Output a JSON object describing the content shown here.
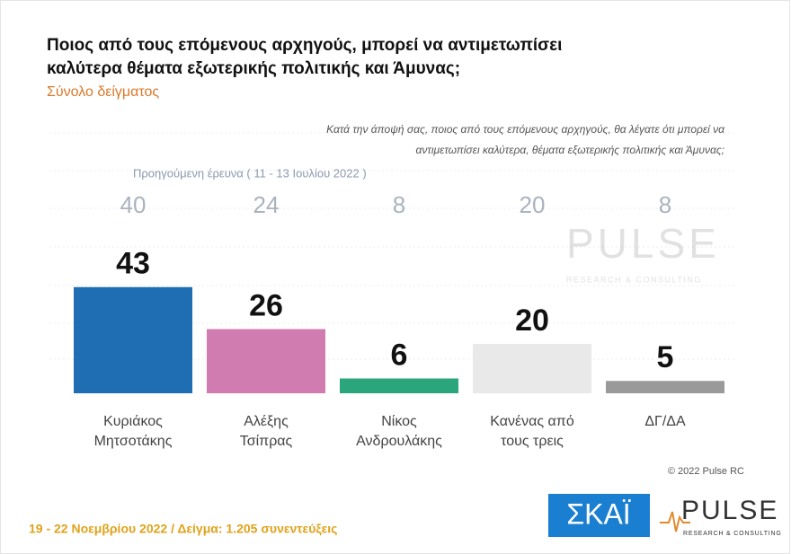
{
  "chart_data": {
    "type": "bar",
    "title": [
      "Ποιος από τους επόμενους αρχηγούς, μπορεί να αντιμετωπίσει",
      "καλύτερα θέματα εξωτερικής πολιτικής και Άμυνας;"
    ],
    "subtitle": "Σύνολο δείγματος",
    "note": [
      "Κατά την άποψή σας, ποιος  από τους επόμενους αρχηγούς, θα λέγατε ότι μπορεί να",
      "αντιμετωπίσει καλύτερα, θέματα εξωτερικής πολιτικής και Άμυνας;"
    ],
    "previous_label": "Προηγούμενη έρευνα  ( 11 - 13 Ιουλίου  2022 )",
    "categories": [
      [
        "Κυριάκος",
        "Μητσοτάκης"
      ],
      [
        "Αλέξης",
        "Τσίπρας"
      ],
      [
        "Νίκος",
        "Ανδρουλάκης"
      ],
      [
        "Κανένας από",
        "τους τρεις"
      ],
      [
        "ΔΓ/ΔΑ"
      ]
    ],
    "values": [
      43,
      26,
      6,
      20,
      5
    ],
    "previous_values": [
      40,
      24,
      8,
      20,
      8
    ],
    "colors": [
      "#1f6db3",
      "#d07cb0",
      "#2ba57b",
      "#e9e9e9",
      "#9a9a9a"
    ]
  },
  "copyright": "© 2022 Pulse RC",
  "footer": "19 - 22  Νοεμβρίου  2022  /  Δείγμα:  1.205  συνεντεύξεις",
  "logos": {
    "skai": "ΣΚΑΪ",
    "pulse": "PULSE",
    "pulse_sub": "RESEARCH & CONSULTING"
  }
}
